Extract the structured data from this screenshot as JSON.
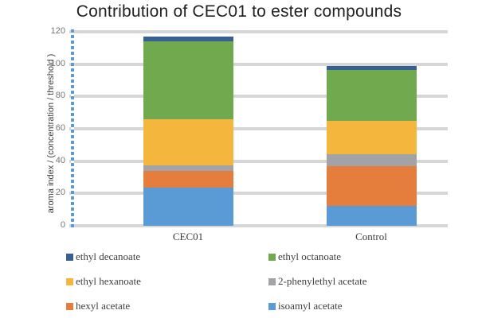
{
  "title": "Contribution of CEC01 to ester compounds",
  "chart_data": {
    "type": "bar",
    "stacked": true,
    "title": "Contribution of CEC01 to ester compounds",
    "categories": [
      "CEC01",
      "Control"
    ],
    "series": [
      {
        "name": "isoamyl acetate",
        "color": "#5b9bd5",
        "values": [
          23.5,
          12.5
        ]
      },
      {
        "name": "hexyl acetate",
        "color": "#e57e3c",
        "values": [
          10.5,
          24.5
        ]
      },
      {
        "name": "2-phenylethyl acetate",
        "color": "#a2a3a6",
        "values": [
          3.5,
          7.5
        ]
      },
      {
        "name": "ethyl hexanoate",
        "color": "#f4b63c",
        "values": [
          28.5,
          20.5
        ]
      },
      {
        "name": "ethyl octanoate",
        "color": "#70a94e",
        "values": [
          48.0,
          31.5
        ]
      },
      {
        "name": "ethyl decanoate",
        "color": "#376092",
        "values": [
          3.0,
          2.5
        ]
      }
    ],
    "totals": [
      117.0,
      99.0
    ],
    "xlabel": "",
    "ylabel": "aroma index / (concentration / threshold )",
    "yticks": [
      0,
      20,
      40,
      60,
      80,
      100,
      120
    ],
    "ylim": [
      0,
      120
    ],
    "grid": true,
    "gridline_color": "#d6d6d6",
    "axis_line_color": "#5b9bd5",
    "legend_position": "bottom"
  },
  "legend": {
    "items": [
      {
        "label": "ethyl decanoate",
        "color": "#376092"
      },
      {
        "label": "ethyl octanoate",
        "color": "#70a94e"
      },
      {
        "label": "ethyl hexanoate",
        "color": "#f4b63c"
      },
      {
        "label": "2-phenylethyl acetate",
        "color": "#a2a3a6"
      },
      {
        "label": "hexyl acetate",
        "color": "#e57e3c"
      },
      {
        "label": "isoamyl acetate",
        "color": "#5b9bd5"
      }
    ]
  }
}
